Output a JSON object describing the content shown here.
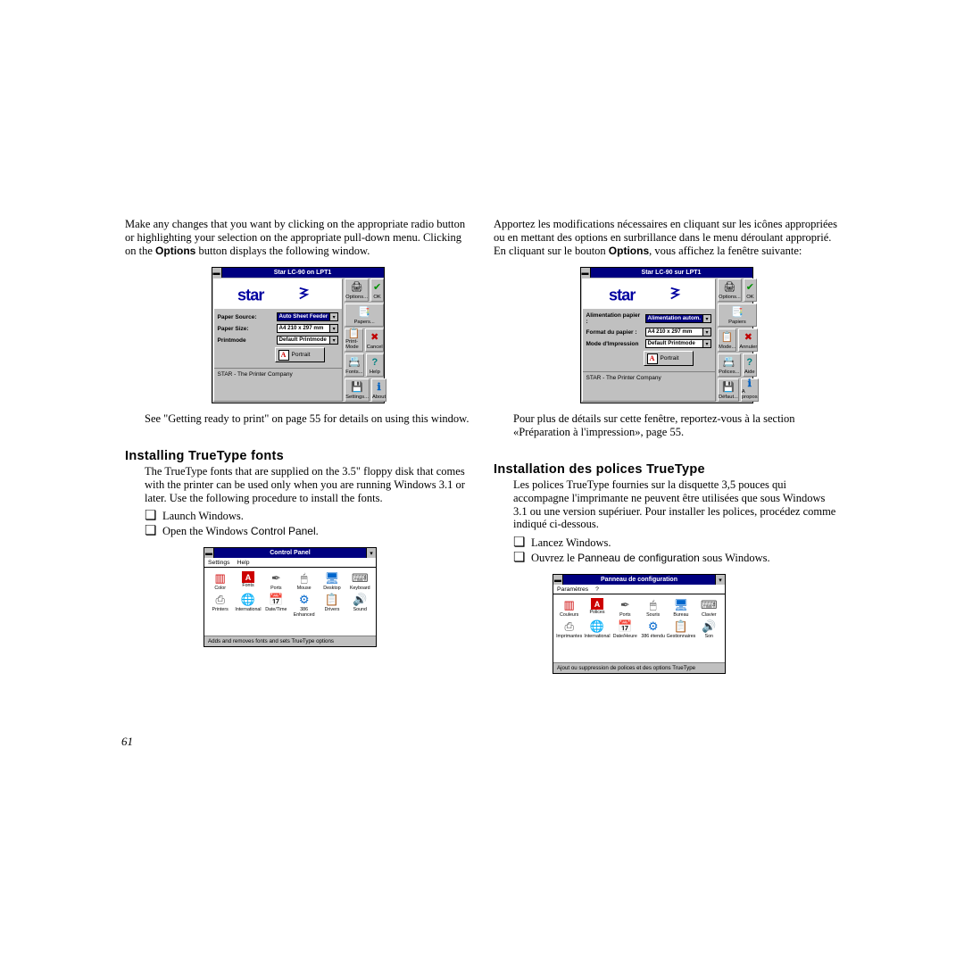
{
  "page_number": "61",
  "left": {
    "intro": "Make any changes that you want by clicking on the appropriate radio button or highlighting your selection on the appropriate pull-down menu. Clicking on the ",
    "intro_bold": "Options",
    "intro_tail": " button displays the following window.",
    "dialog": {
      "title": "Star LC-90 on LPT1",
      "company": "STAR - The Printer Company",
      "labels": {
        "source": "Paper Source:",
        "size": "Paper Size:",
        "mode": "Printmode"
      },
      "values": {
        "source": "Auto Sheet Feeder",
        "size": "A4 210 x 297 mm",
        "mode": "Default Printmode"
      },
      "portrait": "Portrait",
      "side": {
        "options": "Options...",
        "papers": "Papers...",
        "printmode": "Print-Mode",
        "fonts": "Fonts...",
        "settings": "Settings...",
        "ok": "OK",
        "cancel": "Cancel",
        "help": "Help",
        "about": "About"
      }
    },
    "caption": "See \"Getting ready to print\" on page 55 for details on using this window.",
    "heading": "Installing TrueType fonts",
    "body": "The TrueType fonts that are supplied on the 3.5\" floppy disk that comes with the printer can be used only when you are running Windows 3.1 or later. Use the following procedure to install the fonts.",
    "bullet1": "Launch Windows.",
    "bullet2a": "Open the Windows ",
    "bullet2b": "Control Panel",
    "bullet2c": ".",
    "cp": {
      "title": "Control Panel",
      "menu1": "Settings",
      "menu2": "Help",
      "icons": [
        "Color",
        "Fonts",
        "Ports",
        "Mouse",
        "Desktop",
        "Keyboard",
        "Printers",
        "International",
        "Date/Time",
        "386 Enhanced",
        "Drivers",
        "Sound"
      ],
      "status": "Adds and removes fonts and sets TrueType options"
    }
  },
  "right": {
    "intro": "Apportez les modifications nécessaires en cliquant sur les icônes appropriées ou en mettant des options en surbrillance dans le menu déroulant approprié. En cliquant sur le bouton ",
    "intro_bold": "Options",
    "intro_tail": ", vous affichez la fenêtre suivante:",
    "dialog": {
      "title": "Star LC-90 sur LPT1",
      "company": "STAR - The Printer Company",
      "labels": {
        "source": "Alimentation papier :",
        "size": "Format du papier  :",
        "mode": "Mode d'Impression"
      },
      "values": {
        "source": "Alimentation autom.",
        "size": "A4 210 x 297 mm",
        "mode": "Default Printmode"
      },
      "portrait": "Portrait",
      "side": {
        "options": "Options...",
        "papers": "Papiers",
        "printmode": "Mode...",
        "fonts": "Polices...",
        "settings": "Défaut...",
        "ok": "OK",
        "cancel": "Annuler",
        "help": "Aide",
        "about": "A propos"
      }
    },
    "caption": "Pour plus de détails sur cette fenêtre, reportez-vous à la section «Préparation à l'impression», page 55.",
    "heading": "Installation des polices TrueType",
    "body": "Les polices TrueType fournies sur la disquette 3,5 pouces qui accompagne l'imprimante ne peuvent être utilisées que sous Windows 3.1 ou une version supériuer. Pour installer les polices, procédez comme indiqué ci-dessous.",
    "bullet1": "Lancez Windows.",
    "bullet2a": "Ouvrez le ",
    "bullet2b": "Panneau de configuration",
    "bullet2c": " sous Windows.",
    "cp": {
      "title": "Panneau de configuration",
      "menu1": "Paramètres",
      "menu2": "?",
      "icons": [
        "Couleurs",
        "Polices",
        "Ports",
        "Souris",
        "Bureau",
        "Clavier",
        "Imprimantes",
        "International",
        "Date/Heure",
        "386 étendu",
        "Gestionnaires",
        "Son"
      ],
      "status": "Ajout ou suppression de polices et des options TrueType"
    }
  },
  "icons": {
    "printer": "🖨",
    "paper": "📄",
    "wrench": "🔧",
    "fonts": "📇",
    "disk": "💾",
    "check": "✔",
    "cross": "✖",
    "help": "?",
    "info": "ℹ",
    "color": "▥",
    "fontsA": "A",
    "port": "✒",
    "mouse": "🖱",
    "desktop": "🖥",
    "keyboard": "⌨",
    "printers": "⎙",
    "intl": "🌐",
    "datetime": "📅",
    "enh": "⚙",
    "drivers": "📋",
    "sound": "🔊"
  },
  "colors": {
    "titlebar": "#000080",
    "panel": "#c0c0c0",
    "green": "#009000",
    "red": "#c00000",
    "blue": "#0000c0",
    "info": "#0060c0"
  }
}
